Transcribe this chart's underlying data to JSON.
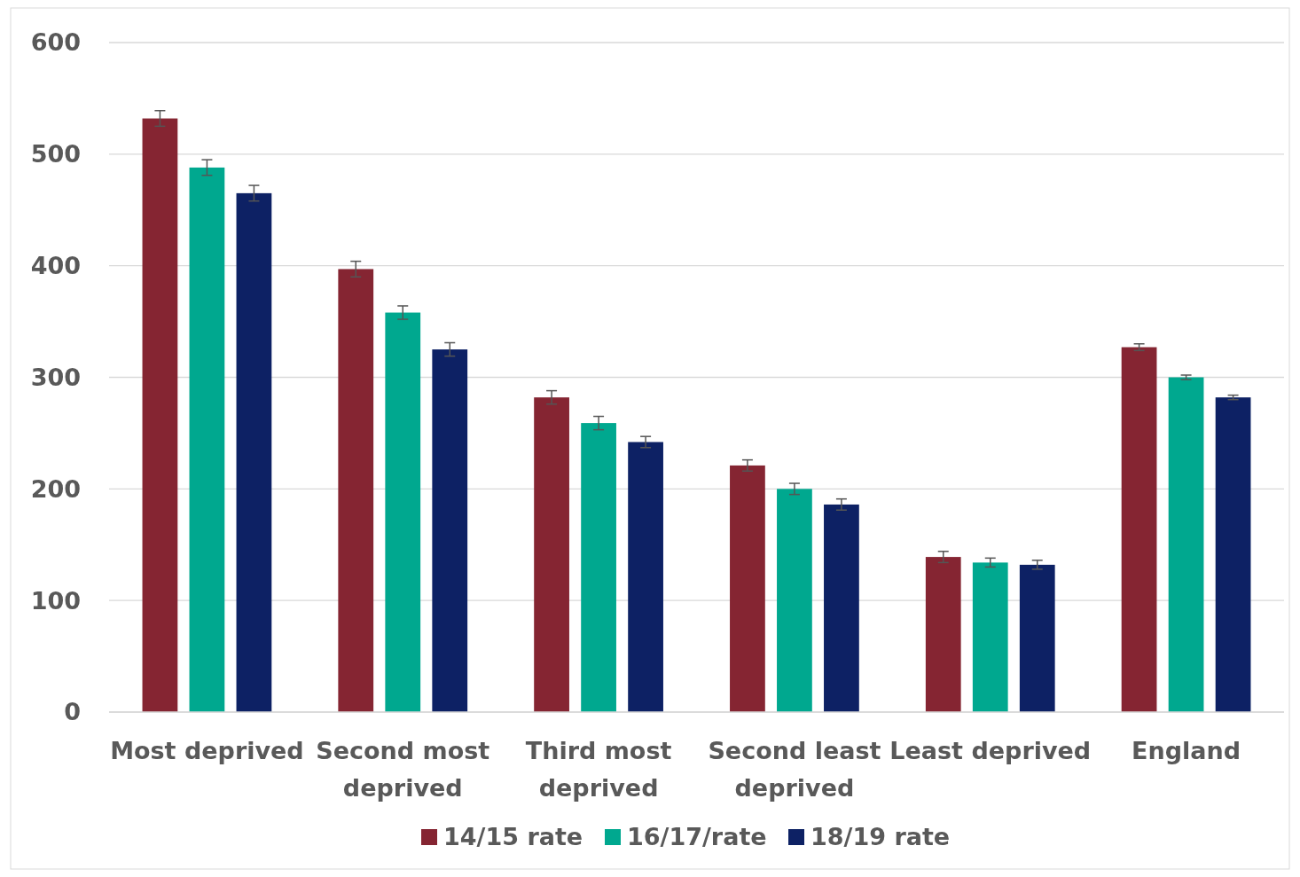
{
  "chart_data": {
    "type": "bar",
    "categories": [
      "Most deprived",
      "Second most deprived",
      "Third most deprived",
      "Second least deprived",
      "Least deprived",
      "England"
    ],
    "series": [
      {
        "name": "14/15 rate",
        "color": "#852532",
        "values": [
          532,
          397,
          282,
          221,
          139,
          327
        ],
        "errors": [
          7,
          7,
          6,
          5,
          5,
          3
        ]
      },
      {
        "name": "16/17/rate",
        "color": "#00a88f",
        "values": [
          488,
          358,
          259,
          200,
          134,
          300
        ],
        "errors": [
          7,
          6,
          6,
          5,
          4,
          2
        ]
      },
      {
        "name": "18/19 rate",
        "color": "#0d2164",
        "values": [
          465,
          325,
          242,
          186,
          132,
          282
        ],
        "errors": [
          7,
          6,
          5,
          5,
          4,
          2
        ]
      }
    ],
    "ylim": [
      0,
      600
    ],
    "yticks": [
      0,
      100,
      200,
      300,
      400,
      500,
      600
    ],
    "grid": "y",
    "legend": "bottom"
  }
}
